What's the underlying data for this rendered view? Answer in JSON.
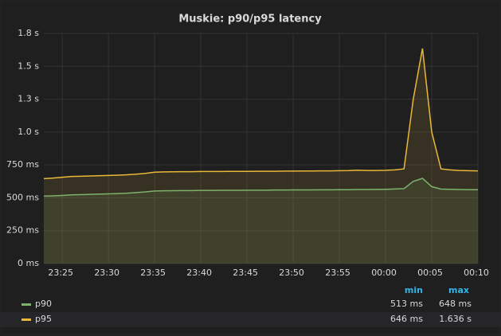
{
  "chart_data": {
    "type": "line",
    "title": "Muskie: p90/p95 latency",
    "x": [
      "23:23",
      "23:24",
      "23:25",
      "23:26",
      "23:27",
      "23:28",
      "23:29",
      "23:30",
      "23:31",
      "23:32",
      "23:33",
      "23:34",
      "23:35",
      "23:36",
      "23:37",
      "23:38",
      "23:39",
      "23:40",
      "23:41",
      "23:42",
      "23:43",
      "23:44",
      "23:45",
      "23:46",
      "23:47",
      "23:48",
      "23:49",
      "23:50",
      "23:51",
      "23:52",
      "23:53",
      "23:54",
      "23:55",
      "23:56",
      "23:57",
      "23:58",
      "23:59",
      "00:00",
      "00:01",
      "00:02",
      "00:03",
      "00:04",
      "00:05",
      "00:06",
      "00:07",
      "00:08",
      "00:09",
      "00:10"
    ],
    "series": [
      {
        "name": "p90",
        "color": "#7eb26d",
        "values": [
          513,
          515,
          518,
          522,
          524,
          526,
          528,
          530,
          532,
          535,
          540,
          545,
          552,
          553,
          554,
          555,
          555,
          556,
          556,
          557,
          557,
          557,
          558,
          558,
          558,
          559,
          559,
          560,
          560,
          560,
          561,
          561,
          562,
          562,
          563,
          563,
          564,
          565,
          567,
          570,
          625,
          648,
          585,
          566,
          565,
          563,
          562,
          562
        ]
      },
      {
        "name": "p95",
        "color": "#eab839",
        "values": [
          646,
          650,
          656,
          662,
          664,
          666,
          668,
          670,
          672,
          675,
          680,
          686,
          695,
          697,
          698,
          699,
          699,
          700,
          700,
          700,
          701,
          701,
          701,
          702,
          702,
          702,
          703,
          703,
          704,
          704,
          705,
          705,
          706,
          707,
          710,
          708,
          708,
          709,
          712,
          720,
          1250,
          1636,
          1000,
          720,
          712,
          708,
          706,
          705
        ]
      }
    ],
    "xlim": [
      "23:23",
      "00:10"
    ],
    "xticks": [
      "23:25",
      "23:30",
      "23:35",
      "23:40",
      "23:45",
      "23:50",
      "23:55",
      "00:00",
      "00:05",
      "00:10"
    ],
    "ylim": [
      0,
      1750
    ],
    "yticks": [
      {
        "value": 0,
        "label": "0 ms"
      },
      {
        "value": 250,
        "label": "250 ms"
      },
      {
        "value": 500,
        "label": "500 ms"
      },
      {
        "value": 750,
        "label": "750 ms"
      },
      {
        "value": 1000,
        "label": "1.0 s"
      },
      {
        "value": 1250,
        "label": "1.3 s"
      },
      {
        "value": 1500,
        "label": "1.5 s"
      },
      {
        "value": 1750,
        "label": "1.8 s"
      }
    ],
    "grid": true,
    "legend": {
      "headers": [
        "min",
        "max"
      ],
      "stats": [
        [
          "513 ms",
          "648 ms"
        ],
        [
          "646 ms",
          "1.636 s"
        ]
      ]
    }
  }
}
